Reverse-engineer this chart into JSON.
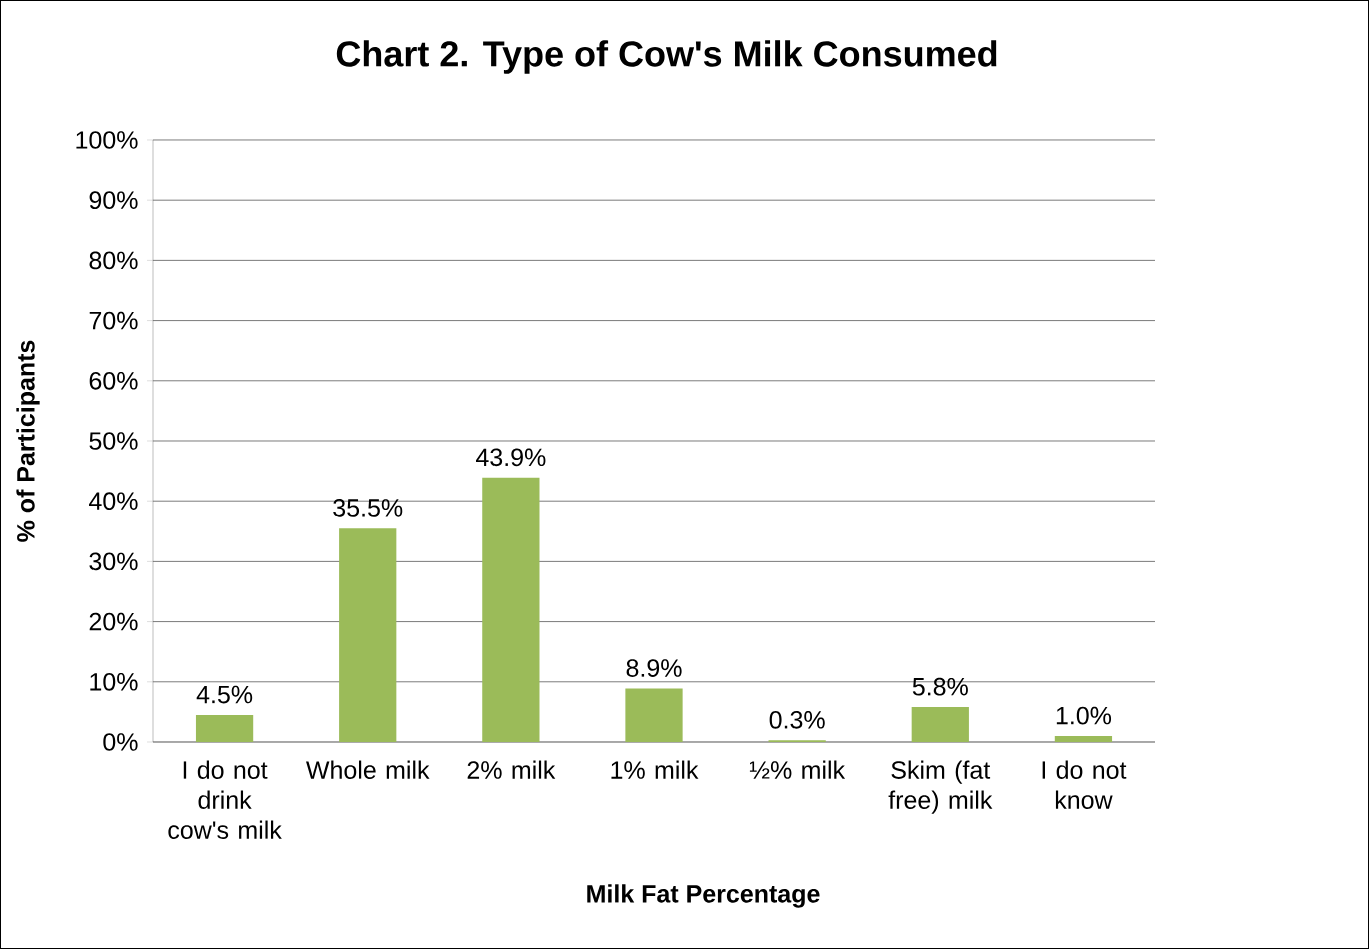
{
  "chart_data": {
    "type": "bar",
    "title": "Chart 2.  Type of Cow's Milk Consumed",
    "xlabel": "Milk Fat Percentage",
    "ylabel": "% of Participants",
    "categories": [
      "I do not drink cow's milk",
      "Whole milk",
      "2% milk",
      "1% milk",
      "½% milk",
      "Skim (fat free) milk",
      "I do not know"
    ],
    "values": [
      4.5,
      35.5,
      43.9,
      8.9,
      0.3,
      5.8,
      1.0
    ],
    "value_labels": [
      "4.5%",
      "35.5%",
      "43.9%",
      "8.9%",
      "0.3%",
      "5.8%",
      "1.0%"
    ],
    "color": "#9bbb59",
    "ylim": [
      0,
      100
    ],
    "yticks": [
      {
        "value": 0,
        "label": "0%"
      },
      {
        "value": 10,
        "label": "10%"
      },
      {
        "value": 20,
        "label": "20%"
      },
      {
        "value": 30,
        "label": "30%"
      },
      {
        "value": 40,
        "label": "40%"
      },
      {
        "value": 50,
        "label": "50%"
      },
      {
        "value": 60,
        "label": "60%"
      },
      {
        "value": 70,
        "label": "70%"
      },
      {
        "value": 80,
        "label": "80%"
      },
      {
        "value": 90,
        "label": "90%"
      },
      {
        "value": 100,
        "label": "100%"
      }
    ],
    "grid": "y"
  }
}
